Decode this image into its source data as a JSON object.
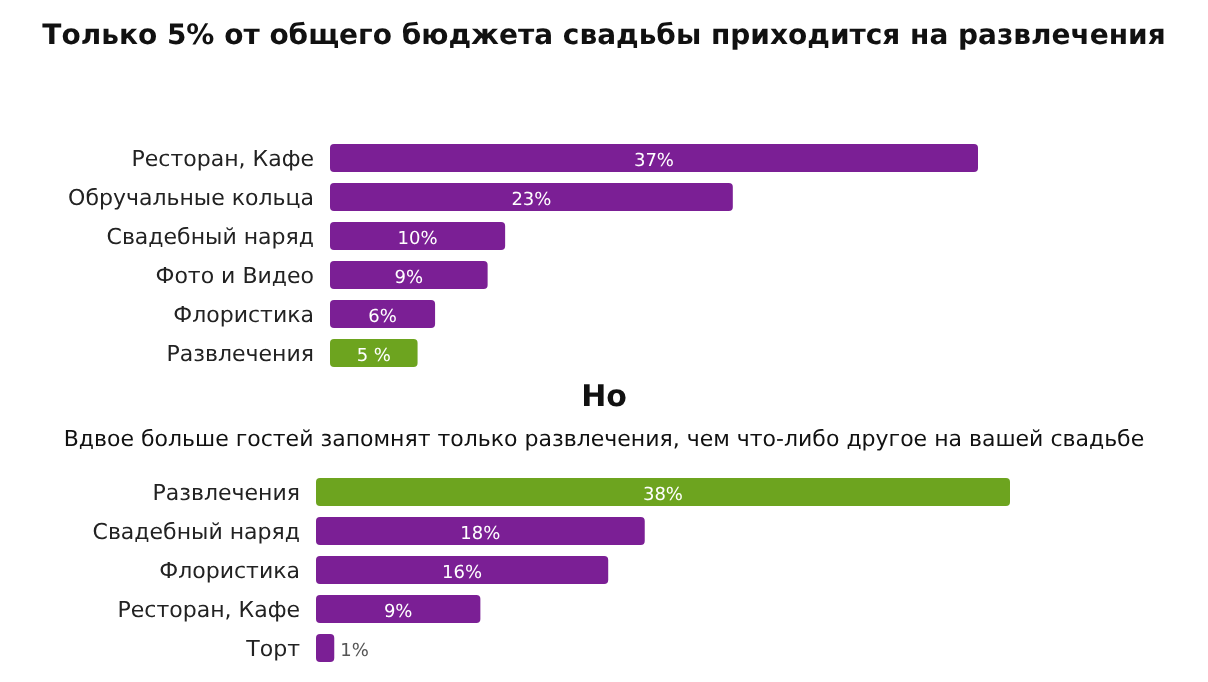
{
  "chart_data": [
    {
      "type": "bar",
      "orientation": "horizontal",
      "title": "Только 5% от общего бюджета свадьбы приходится на развлечения",
      "categories": [
        "Ресторан, Кафе",
        "Обручальные кольца",
        "Свадебный наряд",
        "Фото и Видео",
        "Флористика",
        "Развлечения"
      ],
      "values": [
        37,
        23,
        10,
        9,
        6,
        5
      ],
      "colors": [
        "#7b1f95",
        "#7b1f95",
        "#7b1f95",
        "#7b1f95",
        "#7b1f95",
        "#6da41f"
      ],
      "value_labels": [
        "37%",
        "23%",
        "10%",
        "9%",
        "6%",
        "5 %"
      ]
    },
    {
      "type": "bar",
      "orientation": "horizontal",
      "title": "Но",
      "subtitle": "Вдвое больше гостей запомнят только развлечения, чем что-либо другое на вашей свадьбе",
      "categories": [
        "Развлечения",
        "Свадебный наряд",
        "Флористика",
        "Ресторан, Кафе",
        "Торт"
      ],
      "values": [
        38,
        18,
        16,
        9,
        1
      ],
      "colors": [
        "#6da41f",
        "#7b1f95",
        "#7b1f95",
        "#7b1f95",
        "#7b1f95"
      ],
      "value_labels": [
        "38%",
        "18%",
        "16%",
        "9%",
        "1%"
      ]
    }
  ]
}
